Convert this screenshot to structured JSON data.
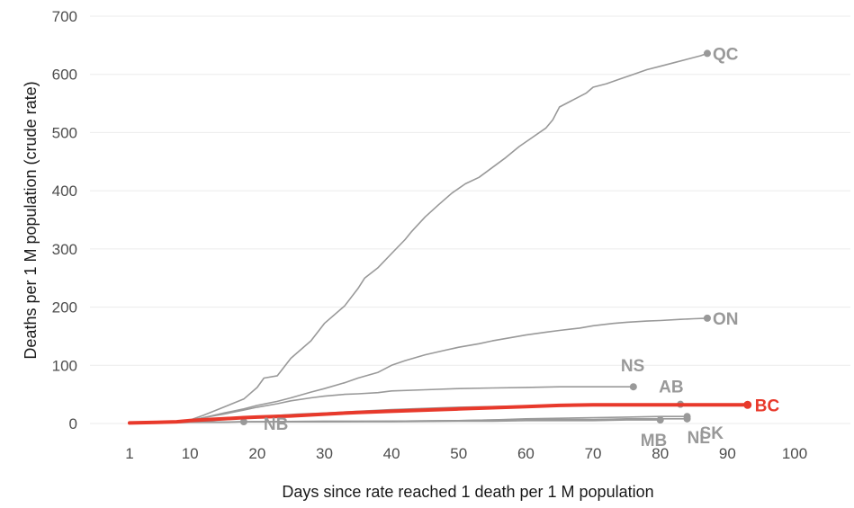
{
  "chart_data": {
    "type": "line",
    "title": "",
    "xlabel": "Days since rate reached 1 death per 1 M population",
    "ylabel": "Deaths per 1 M population (crude rate)",
    "xlim": [
      1,
      100
    ],
    "ylim": [
      0,
      700
    ],
    "x_ticks": [
      1,
      10,
      20,
      30,
      40,
      50,
      60,
      70,
      80,
      90,
      100
    ],
    "y_ticks": [
      0,
      100,
      200,
      300,
      400,
      500,
      600,
      700
    ],
    "grid": "horizontal",
    "legend": "none (series labelled at line ends)",
    "highlight_color": "#e8392b",
    "muted_color": "#999999",
    "series": [
      {
        "name": "QC",
        "highlight": false,
        "label_dx": 6,
        "label_dy": 0,
        "points": [
          [
            1,
            1
          ],
          [
            8,
            3
          ],
          [
            10,
            6
          ],
          [
            12,
            14
          ],
          [
            15,
            28
          ],
          [
            18,
            42
          ],
          [
            20,
            62
          ],
          [
            21,
            78
          ],
          [
            23,
            82
          ],
          [
            25,
            112
          ],
          [
            28,
            142
          ],
          [
            30,
            172
          ],
          [
            33,
            202
          ],
          [
            35,
            232
          ],
          [
            36,
            250
          ],
          [
            38,
            268
          ],
          [
            40,
            292
          ],
          [
            42,
            316
          ],
          [
            43,
            330
          ],
          [
            45,
            355
          ],
          [
            47,
            376
          ],
          [
            49,
            396
          ],
          [
            51,
            412
          ],
          [
            53,
            423
          ],
          [
            55,
            440
          ],
          [
            57,
            457
          ],
          [
            59,
            476
          ],
          [
            61,
            492
          ],
          [
            63,
            508
          ],
          [
            64,
            522
          ],
          [
            65,
            544
          ],
          [
            67,
            556
          ],
          [
            69,
            568
          ],
          [
            70,
            578
          ],
          [
            72,
            584
          ],
          [
            74,
            592
          ],
          [
            76,
            600
          ],
          [
            78,
            608
          ],
          [
            80,
            614
          ],
          [
            82,
            620
          ],
          [
            84,
            626
          ],
          [
            86,
            632
          ],
          [
            87,
            636
          ]
        ]
      },
      {
        "name": "ON",
        "highlight": false,
        "label_dx": 6,
        "label_dy": 0,
        "points": [
          [
            1,
            1
          ],
          [
            8,
            3
          ],
          [
            10,
            5
          ],
          [
            12,
            10
          ],
          [
            15,
            18
          ],
          [
            18,
            25
          ],
          [
            20,
            31
          ],
          [
            23,
            38
          ],
          [
            25,
            44
          ],
          [
            28,
            54
          ],
          [
            30,
            60
          ],
          [
            33,
            70
          ],
          [
            35,
            78
          ],
          [
            38,
            88
          ],
          [
            40,
            100
          ],
          [
            42,
            108
          ],
          [
            45,
            118
          ],
          [
            48,
            126
          ],
          [
            50,
            131
          ],
          [
            53,
            137
          ],
          [
            55,
            142
          ],
          [
            58,
            148
          ],
          [
            60,
            152
          ],
          [
            63,
            157
          ],
          [
            65,
            160
          ],
          [
            68,
            164
          ],
          [
            70,
            168
          ],
          [
            73,
            172
          ],
          [
            75,
            174
          ],
          [
            78,
            176
          ],
          [
            80,
            177
          ],
          [
            83,
            179
          ],
          [
            85,
            180
          ],
          [
            87,
            181
          ]
        ]
      },
      {
        "name": "NS",
        "highlight": false,
        "label_dx": -14,
        "label_dy": -24,
        "points": [
          [
            1,
            1
          ],
          [
            8,
            3
          ],
          [
            10,
            5
          ],
          [
            12,
            10
          ],
          [
            15,
            16
          ],
          [
            18,
            23
          ],
          [
            20,
            28
          ],
          [
            23,
            34
          ],
          [
            25,
            39
          ],
          [
            28,
            44
          ],
          [
            30,
            47
          ],
          [
            33,
            50
          ],
          [
            35,
            51
          ],
          [
            38,
            53
          ],
          [
            40,
            56
          ],
          [
            45,
            58
          ],
          [
            50,
            60
          ],
          [
            55,
            61
          ],
          [
            60,
            62
          ],
          [
            65,
            63
          ],
          [
            70,
            63
          ],
          [
            76,
            63
          ]
        ]
      },
      {
        "name": "AB",
        "highlight": false,
        "label_dx": -24,
        "label_dy": -20,
        "points": [
          [
            1,
            1
          ],
          [
            8,
            2
          ],
          [
            10,
            3
          ],
          [
            13,
            5
          ],
          [
            16,
            8
          ],
          [
            19,
            11
          ],
          [
            22,
            13
          ],
          [
            26,
            16
          ],
          [
            30,
            18
          ],
          [
            35,
            21
          ],
          [
            40,
            24
          ],
          [
            45,
            26
          ],
          [
            50,
            28
          ],
          [
            55,
            29
          ],
          [
            60,
            30
          ],
          [
            65,
            31
          ],
          [
            70,
            32
          ],
          [
            75,
            32
          ],
          [
            80,
            33
          ],
          [
            83,
            33
          ]
        ]
      },
      {
        "name": "SK",
        "highlight": false,
        "label_dx": 14,
        "label_dy": 18,
        "points": [
          [
            1,
            1
          ],
          [
            10,
            2
          ],
          [
            20,
            3
          ],
          [
            30,
            4
          ],
          [
            40,
            4
          ],
          [
            50,
            5
          ],
          [
            55,
            6
          ],
          [
            60,
            8
          ],
          [
            65,
            9
          ],
          [
            70,
            10
          ],
          [
            75,
            11
          ],
          [
            80,
            12
          ],
          [
            84,
            12
          ]
        ]
      },
      {
        "name": "NL",
        "highlight": false,
        "label_dx": 0,
        "label_dy": 20,
        "points": [
          [
            1,
            1
          ],
          [
            10,
            2
          ],
          [
            20,
            3
          ],
          [
            30,
            3
          ],
          [
            40,
            4
          ],
          [
            50,
            5
          ],
          [
            55,
            6
          ],
          [
            60,
            7
          ],
          [
            65,
            7
          ],
          [
            70,
            7
          ],
          [
            75,
            8
          ],
          [
            80,
            8
          ],
          [
            84,
            8
          ]
        ]
      },
      {
        "name": "MB",
        "highlight": false,
        "label_dx": -22,
        "label_dy": 22,
        "points": [
          [
            1,
            1
          ],
          [
            10,
            2
          ],
          [
            20,
            3
          ],
          [
            30,
            3
          ],
          [
            40,
            3
          ],
          [
            50,
            4
          ],
          [
            55,
            4
          ],
          [
            60,
            5
          ],
          [
            65,
            5
          ],
          [
            70,
            5
          ],
          [
            75,
            6
          ],
          [
            80,
            6
          ]
        ]
      },
      {
        "name": "NB",
        "highlight": false,
        "label_dx": 22,
        "label_dy": 2,
        "points": [
          [
            1,
            1
          ],
          [
            5,
            1
          ],
          [
            10,
            2
          ],
          [
            14,
            2
          ],
          [
            18,
            3
          ]
        ]
      },
      {
        "name": "BC",
        "highlight": true,
        "label_dx": 8,
        "label_dy": 0,
        "points": [
          [
            1,
            1
          ],
          [
            5,
            2
          ],
          [
            8,
            3
          ],
          [
            10,
            5
          ],
          [
            13,
            7
          ],
          [
            15,
            8
          ],
          [
            18,
            10
          ],
          [
            20,
            11
          ],
          [
            25,
            13
          ],
          [
            30,
            16
          ],
          [
            35,
            19
          ],
          [
            40,
            21
          ],
          [
            45,
            23
          ],
          [
            50,
            25
          ],
          [
            55,
            27
          ],
          [
            60,
            29
          ],
          [
            65,
            31
          ],
          [
            70,
            32
          ],
          [
            75,
            32
          ],
          [
            80,
            32
          ],
          [
            85,
            32
          ],
          [
            90,
            32
          ],
          [
            93,
            32
          ]
        ]
      }
    ]
  }
}
